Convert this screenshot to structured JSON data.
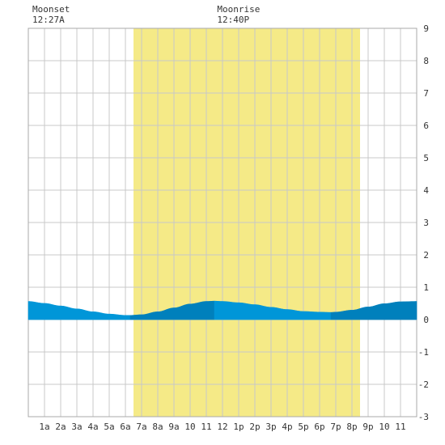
{
  "annotations": [
    {
      "name": "moonset",
      "label": "Moonset",
      "time": "12:27A",
      "hour": 0.45
    },
    {
      "name": "moonrise",
      "label": "Moonrise",
      "time": "12:40P",
      "hour": 12.67
    }
  ],
  "chart_data": {
    "type": "area",
    "title": "",
    "xlabel": "",
    "ylabel": "",
    "xlim": [
      0,
      24
    ],
    "ylim": [
      -3,
      9
    ],
    "grid": true,
    "y_axis_side": "right",
    "daylight": {
      "start_hour": 6.5,
      "end_hour": 20.5
    },
    "x_tick_labels": [
      "1a",
      "2a",
      "3a",
      "4a",
      "5a",
      "6a",
      "7a",
      "8a",
      "9a",
      "10",
      "11",
      "12",
      "1p",
      "2p",
      "3p",
      "4p",
      "5p",
      "6p",
      "7p",
      "8p",
      "9p",
      "10",
      "11"
    ],
    "y_tick_labels": [
      "-3",
      "-2",
      "-1",
      "0",
      "1",
      "2",
      "3",
      "4",
      "5",
      "6",
      "7",
      "8",
      "9"
    ],
    "series": [
      {
        "x": [
          0,
          1,
          2,
          3,
          4,
          5,
          6,
          6.3,
          7,
          8,
          9,
          10,
          11,
          11.5,
          12,
          13,
          14,
          15,
          16,
          17,
          18,
          18.7,
          19,
          20,
          21,
          22,
          23,
          24
        ],
        "values": [
          0.56,
          0.5,
          0.42,
          0.33,
          0.24,
          0.17,
          0.13,
          0.13,
          0.15,
          0.24,
          0.36,
          0.48,
          0.56,
          0.57,
          0.56,
          0.52,
          0.46,
          0.38,
          0.31,
          0.25,
          0.23,
          0.22,
          0.23,
          0.29,
          0.39,
          0.49,
          0.55,
          0.56
        ],
        "color": "#0097d8",
        "rising_color": "#0080bc"
      }
    ]
  }
}
